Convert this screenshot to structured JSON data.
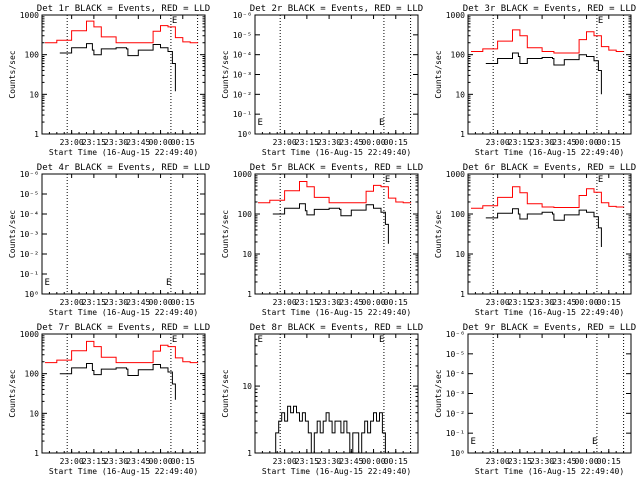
{
  "chart_data": [
    {
      "type": "line",
      "title": "Det 1r BLACK = Events, RED = LLD",
      "xlabel": "Start Time (16-Aug-15 22:49:40)",
      "ylabel": "Counts/sec",
      "x_tick_labels": [
        "23:00",
        "23:15",
        "23:30",
        "23:45",
        "00:00",
        "00:15"
      ],
      "y_tick_labels": [
        "1",
        "10",
        "100",
        "1000"
      ],
      "ylim": [
        1,
        1000
      ],
      "yscale": "log",
      "xlim_minutes": [
        -10,
        100
      ],
      "x_tick_minutes": [
        10,
        25,
        40,
        55,
        70,
        85
      ],
      "vlines_minutes": [
        7,
        77,
        95
      ],
      "markers": [
        {
          "label": "E",
          "x": 77,
          "y": 1000
        }
      ],
      "series": [
        {
          "color": "#ff0000",
          "x": [
            -8,
            0,
            10,
            20,
            25,
            30,
            40,
            48,
            55,
            65,
            70,
            75,
            80,
            85,
            90,
            95
          ],
          "y": [
            200,
            230,
            400,
            700,
            500,
            280,
            200,
            200,
            200,
            390,
            540,
            500,
            270,
            210,
            200,
            195
          ]
        },
        {
          "color": "#000000",
          "x": [
            2,
            10,
            20,
            24,
            25,
            30,
            40,
            47,
            48,
            55,
            65,
            70,
            75,
            78,
            80
          ],
          "y": [
            110,
            150,
            190,
            130,
            100,
            140,
            150,
            140,
            95,
            130,
            180,
            150,
            120,
            60,
            12
          ]
        }
      ]
    },
    {
      "type": "line",
      "title": "Det 2r BLACK = Events, RED = LLD",
      "xlabel": "Start Time (16-Aug-15 22:49:40)",
      "ylabel": "Counts/sec",
      "x_tick_labels": [
        "23:00",
        "23:15",
        "23:30",
        "23:45",
        "00:00",
        "00:15"
      ],
      "y_tick_labels": [
        "10⁰",
        "10⁻¹",
        "10⁻²",
        "10⁻³",
        "10⁻⁴",
        "10⁻⁵",
        "10⁻⁶"
      ],
      "xlim_minutes": [
        -10,
        100
      ],
      "x_tick_minutes": [
        10,
        25,
        40,
        55,
        70,
        85
      ],
      "vlines_minutes": [
        7,
        77,
        95
      ],
      "markers": [
        {
          "label": "E",
          "x": -9,
          "tick": 0.85
        },
        {
          "label": "E",
          "x": 73,
          "tick": 0.85
        }
      ],
      "series": []
    },
    {
      "type": "line",
      "title": "Det 3r BLACK = Events, RED = LLD",
      "xlabel": "Start Time (16-Aug-15 22:49:40)",
      "ylabel": "Counts/sec",
      "x_tick_labels": [
        "23:00",
        "23:15",
        "23:30",
        "23:45",
        "00:00",
        "00:15"
      ],
      "y_tick_labels": [
        "1",
        "10",
        "100",
        "1000"
      ],
      "ylim": [
        1,
        1000
      ],
      "yscale": "log",
      "xlim_minutes": [
        -10,
        100
      ],
      "x_tick_minutes": [
        10,
        25,
        40,
        55,
        70,
        85
      ],
      "vlines_minutes": [
        7,
        77,
        95
      ],
      "markers": [
        {
          "label": "E",
          "x": 77,
          "y": 1000
        }
      ],
      "series": [
        {
          "color": "#ff0000",
          "x": [
            -8,
            0,
            10,
            20,
            25,
            30,
            40,
            48,
            55,
            65,
            70,
            75,
            80,
            85,
            90,
            95
          ],
          "y": [
            120,
            140,
            220,
            420,
            300,
            150,
            120,
            110,
            110,
            240,
            380,
            300,
            160,
            130,
            120,
            120
          ]
        },
        {
          "color": "#000000",
          "x": [
            2,
            10,
            20,
            24,
            25,
            30,
            40,
            47,
            48,
            55,
            65,
            70,
            75,
            78,
            80
          ],
          "y": [
            60,
            80,
            110,
            90,
            60,
            80,
            85,
            80,
            55,
            75,
            100,
            90,
            70,
            40,
            10
          ]
        }
      ]
    },
    {
      "type": "line",
      "title": "Det 4r BLACK = Events, RED = LLD",
      "xlabel": "Start Time (16-Aug-15 22:49:40)",
      "ylabel": "Counts/sec",
      "x_tick_labels": [
        "23:00",
        "23:15",
        "23:30",
        "23:45",
        "00:00",
        "00:15"
      ],
      "y_tick_labels": [
        "10⁰",
        "10⁻¹",
        "10⁻²",
        "10⁻³",
        "10⁻⁴",
        "10⁻⁵",
        "10⁻⁶"
      ],
      "xlim_minutes": [
        -10,
        100
      ],
      "x_tick_minutes": [
        10,
        25,
        40,
        55,
        70,
        85
      ],
      "vlines_minutes": [
        7,
        77,
        95
      ],
      "markers": [
        {
          "label": "E",
          "x": -9,
          "tick": 0.85
        },
        {
          "label": "E",
          "x": 73,
          "tick": 0.85
        }
      ],
      "series": []
    },
    {
      "type": "line",
      "title": "Det 5r BLACK = Events, RED = LLD",
      "xlabel": "Start Time (16-Aug-15 22:49:40)",
      "ylabel": "Counts/sec",
      "x_tick_labels": [
        "23:00",
        "23:15",
        "23:30",
        "23:45",
        "00:00",
        "00:15"
      ],
      "y_tick_labels": [
        "1",
        "10",
        "100",
        "1000"
      ],
      "ylim": [
        1,
        1000
      ],
      "yscale": "log",
      "xlim_minutes": [
        -10,
        100
      ],
      "x_tick_minutes": [
        10,
        25,
        40,
        55,
        70,
        85
      ],
      "vlines_minutes": [
        7,
        77,
        95
      ],
      "markers": [
        {
          "label": "E",
          "x": 77,
          "y": 1000
        }
      ],
      "series": [
        {
          "color": "#ff0000",
          "x": [
            -8,
            0,
            10,
            20,
            25,
            30,
            40,
            48,
            55,
            65,
            70,
            75,
            80,
            85,
            90,
            95
          ],
          "y": [
            190,
            220,
            380,
            650,
            480,
            260,
            190,
            190,
            190,
            370,
            520,
            480,
            250,
            200,
            190,
            185
          ]
        },
        {
          "color": "#000000",
          "x": [
            2,
            10,
            20,
            24,
            25,
            30,
            40,
            47,
            48,
            55,
            65,
            70,
            75,
            78,
            80
          ],
          "y": [
            100,
            140,
            180,
            120,
            95,
            130,
            140,
            130,
            90,
            125,
            170,
            140,
            110,
            55,
            18
          ]
        }
      ]
    },
    {
      "type": "line",
      "title": "Det 6r BLACK = Events, RED = LLD",
      "xlabel": "Start Time (16-Aug-15 22:49:40)",
      "ylabel": "Counts/sec",
      "x_tick_labels": [
        "23:00",
        "23:15",
        "23:30",
        "23:45",
        "00:00",
        "00:15"
      ],
      "y_tick_labels": [
        "1",
        "10",
        "100",
        "1000"
      ],
      "ylim": [
        1,
        1000
      ],
      "yscale": "log",
      "xlim_minutes": [
        -10,
        100
      ],
      "x_tick_minutes": [
        10,
        25,
        40,
        55,
        70,
        85
      ],
      "vlines_minutes": [
        7,
        77,
        95
      ],
      "markers": [
        {
          "label": "E",
          "x": 77,
          "y": 1000
        }
      ],
      "series": [
        {
          "color": "#ff0000",
          "x": [
            -8,
            0,
            10,
            20,
            25,
            30,
            40,
            48,
            55,
            65,
            70,
            75,
            80,
            85,
            90,
            95
          ],
          "y": [
            140,
            160,
            260,
            480,
            340,
            180,
            150,
            145,
            145,
            290,
            430,
            350,
            190,
            155,
            150,
            148
          ]
        },
        {
          "color": "#000000",
          "x": [
            2,
            10,
            20,
            24,
            25,
            30,
            40,
            47,
            48,
            55,
            65,
            70,
            75,
            78,
            80
          ],
          "y": [
            80,
            105,
            135,
            100,
            75,
            100,
            110,
            100,
            70,
            95,
            125,
            110,
            85,
            45,
            15
          ]
        }
      ]
    },
    {
      "type": "line",
      "title": "Det 7r BLACK = Events, RED = LLD",
      "xlabel": "Start Time (16-Aug-15 22:49:40)",
      "ylabel": "Counts/sec",
      "x_tick_labels": [
        "23:00",
        "23:15",
        "23:30",
        "23:45",
        "00:00",
        "00:15"
      ],
      "y_tick_labels": [
        "1",
        "10",
        "100",
        "1000"
      ],
      "ylim": [
        1,
        1000
      ],
      "yscale": "log",
      "xlim_minutes": [
        -10,
        100
      ],
      "x_tick_minutes": [
        10,
        25,
        40,
        55,
        70,
        85
      ],
      "vlines_minutes": [
        7,
        77,
        95
      ],
      "markers": [
        {
          "label": "E",
          "x": 77,
          "y": 1000
        }
      ],
      "series": [
        {
          "color": "#ff0000",
          "x": [
            -8,
            0,
            10,
            20,
            25,
            30,
            40,
            48,
            55,
            65,
            70,
            75,
            80,
            85,
            90,
            95
          ],
          "y": [
            190,
            220,
            380,
            650,
            480,
            260,
            190,
            190,
            190,
            370,
            520,
            480,
            250,
            200,
            190,
            185
          ]
        },
        {
          "color": "#000000",
          "x": [
            2,
            10,
            20,
            24,
            25,
            30,
            40,
            47,
            48,
            55,
            65,
            70,
            75,
            78,
            80
          ],
          "y": [
            100,
            140,
            180,
            120,
            95,
            130,
            140,
            130,
            90,
            125,
            170,
            140,
            110,
            55,
            22
          ]
        }
      ]
    },
    {
      "type": "line",
      "title": "Det 8r BLACK = Events, RED = LLD",
      "xlabel": "Start Time (16-Aug-15 22:49:40)",
      "ylabel": "Counts/sec",
      "x_tick_labels": [
        "23:00",
        "23:15",
        "23:30",
        "23:45",
        "00:00",
        "00:15"
      ],
      "y_tick_labels": [
        "1",
        "10"
      ],
      "ylim": [
        1,
        60
      ],
      "yscale": "log",
      "xlim_minutes": [
        -10,
        100
      ],
      "x_tick_minutes": [
        10,
        25,
        40,
        55,
        70,
        85
      ],
      "vlines_minutes": [
        7,
        77,
        95
      ],
      "markers": [
        {
          "label": "E",
          "x": -9,
          "y": 60
        },
        {
          "label": "E",
          "x": 73,
          "y": 60
        }
      ],
      "series": [
        {
          "color": "#000000",
          "x": [
            2,
            4,
            6,
            8,
            10,
            12,
            14,
            16,
            18,
            20,
            22,
            24,
            26,
            28,
            30,
            32,
            34,
            36,
            38,
            40,
            42,
            44,
            46,
            48,
            50,
            52,
            54,
            56,
            58,
            60,
            62,
            64,
            66,
            68,
            70,
            72,
            74,
            76,
            78,
            80
          ],
          "y": [
            1,
            2,
            3,
            4,
            3,
            5,
            4,
            5,
            4,
            3,
            4,
            3,
            2,
            1,
            2,
            3,
            2,
            3,
            4,
            3,
            2,
            3,
            3,
            2,
            3,
            2,
            1,
            2,
            2,
            1,
            2,
            3,
            2,
            3,
            4,
            3,
            4,
            2,
            1,
            1
          ]
        }
      ]
    },
    {
      "type": "line",
      "title": "Det 9r BLACK = Events, RED = LLD",
      "xlabel": "Start Time (16-Aug-15 22:49:40)",
      "ylabel": "Counts/sec",
      "x_tick_labels": [
        "23:00",
        "23:15",
        "23:30",
        "23:45",
        "00:00",
        "00:15"
      ],
      "y_tick_labels": [
        "10⁰",
        "10⁻¹",
        "10⁻²",
        "10⁻³",
        "10⁻⁴",
        "10⁻⁵",
        "10⁻⁶"
      ],
      "xlim_minutes": [
        -10,
        100
      ],
      "x_tick_minutes": [
        10,
        25,
        40,
        55,
        70,
        85
      ],
      "vlines_minutes": [
        7,
        77,
        95
      ],
      "markers": [
        {
          "label": "E",
          "x": -9,
          "tick": 0.85
        },
        {
          "label": "E",
          "x": 73,
          "tick": 0.85
        }
      ],
      "series": []
    }
  ]
}
